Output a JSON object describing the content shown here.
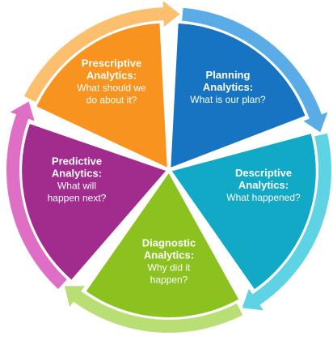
{
  "segments": [
    {
      "key": "planning",
      "title": [
        "Planning",
        "Analytics:"
      ],
      "question": [
        "What is our plan?"
      ],
      "color": "#1674c2",
      "arrow_color": "#59ace6"
    },
    {
      "key": "descriptive",
      "title": [
        "Descriptive",
        "Analytics:"
      ],
      "question": [
        "What happened?"
      ],
      "color": "#12a9c6",
      "arrow_color": "#5dd3e3"
    },
    {
      "key": "diagnostic",
      "title": [
        "Diagnostic",
        "Analytics:"
      ],
      "question": [
        "Why did it",
        "happen?"
      ],
      "color": "#8cc220",
      "arrow_color": "#b9de73"
    },
    {
      "key": "predictive",
      "title": [
        "Predictive",
        "Analytics:"
      ],
      "question": [
        "What will",
        "happen next?"
      ],
      "color": "#a22b8e",
      "arrow_color": "#de6fc4"
    },
    {
      "key": "prescriptive",
      "title": [
        "Prescriptive",
        "Analytics:"
      ],
      "question": [
        "What should we",
        "do about it?"
      ],
      "color": "#f7931e",
      "arrow_color": "#fbbf6e"
    }
  ]
}
